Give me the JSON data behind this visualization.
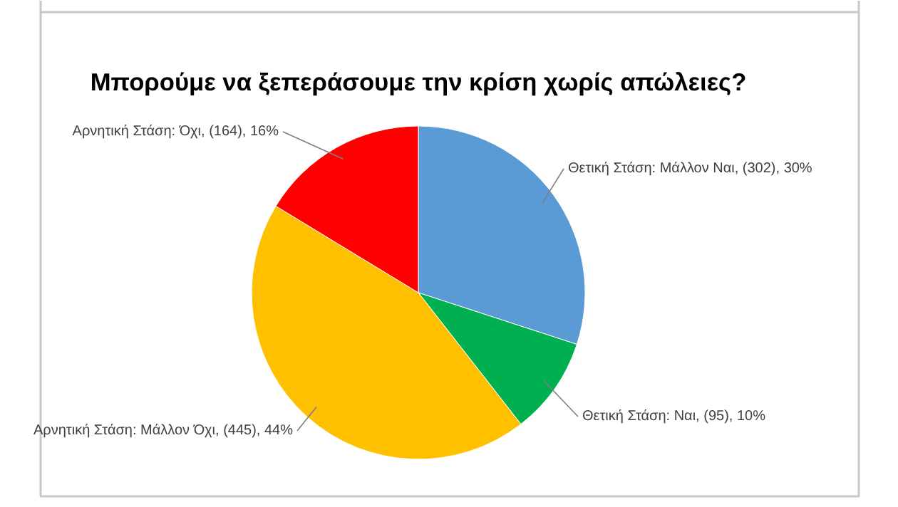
{
  "chart_data": {
    "type": "pie",
    "title": "Μπορούμε να ξεπεράσουμε την κρίση χωρίς απώλειες?",
    "categories": [
      "Θετική Στάση: Μάλλον Ναι",
      "Θετική Στάση: Ναι",
      "Αρνητική Στάση: Μάλλον Όχι",
      "Αρνητική Στάση: Όχι"
    ],
    "values": [
      302,
      95,
      445,
      164
    ],
    "colors": [
      "#5b9bd5",
      "#00b050",
      "#ffc000",
      "#ff0000"
    ],
    "value_labels": [
      "(302), 30%",
      "(95), 10%",
      "(445), 44%",
      "(164), 16%"
    ]
  }
}
